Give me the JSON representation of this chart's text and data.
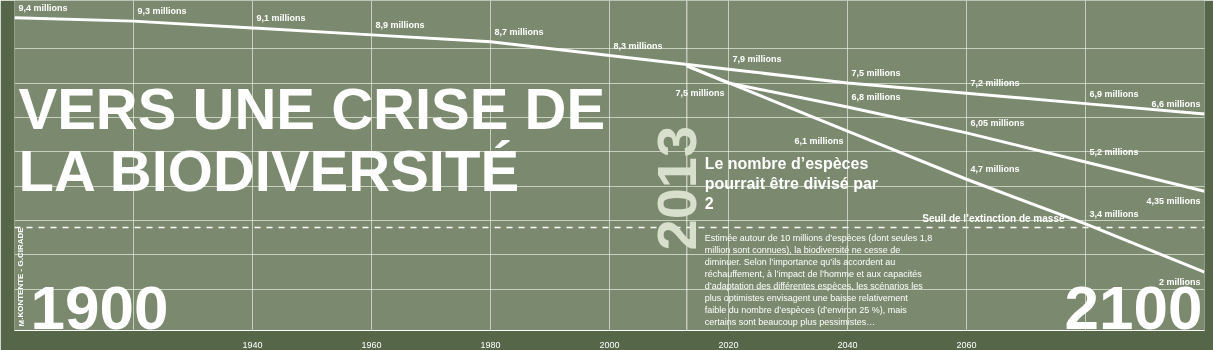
{
  "chart_data": {
    "type": "line",
    "title": "VERS UNE CRISE DE LA BIODIVERSITÉ",
    "subtitle": "Le nombre d’espèces pourrait être divisé par 2",
    "xlim": [
      1900,
      2100
    ],
    "ylim": [
      0.3,
      9.9
    ],
    "xticks": [
      {
        "value": 1920,
        "label": null
      },
      1940,
      1960,
      1980,
      {
        "value": 2000,
        "label": "2000"
      },
      2020,
      2040,
      2060,
      {
        "value": 2080,
        "label": null
      }
    ],
    "yticks": [
      {
        "value": 1.5,
        "label": null
      },
      {
        "value": 2.5,
        "label": null
      },
      {
        "value": 3.5,
        "label": null
      },
      {
        "value": 4.5,
        "label": null
      },
      {
        "value": 5.5,
        "label": null
      },
      {
        "value": 6.5,
        "label": null
      },
      {
        "value": 7.5,
        "label": null
      },
      {
        "value": 8.5,
        "label": null
      }
    ],
    "tick_labels": "x",
    "grid": true,
    "marker": "none",
    "line_style": "solid",
    "series": [
      {
        "color": "#ffffff",
        "x": [
          1900,
          1920,
          1940,
          1960,
          1980,
          2000,
          2020,
          2040,
          2060,
          2080,
          2100
        ],
        "values": [
          9.4,
          9.3,
          9.1,
          8.9,
          8.7,
          8.3,
          7.9,
          7.5,
          7.2,
          6.9,
          6.6
        ],
        "value_labels": [
          "9,4 millions",
          "9,3 millions",
          "9,1 millions",
          "8,9 millions",
          "8,7 millions",
          "8,3 millions",
          "7,9 millions",
          "7,5 millions",
          "7,2 millions",
          "6,9 millions",
          "6,6 millions"
        ]
      },
      {
        "color": "#ffffff",
        "x": [
          2013,
          2020,
          2040,
          2060,
          2080,
          2100
        ],
        "values": [
          8.0,
          7.5,
          6.8,
          6.05,
          5.2,
          4.35
        ],
        "value_labels": [
          null,
          "7,5 millions",
          "6,8 millions",
          "6,05 millions",
          "5,2 millions",
          "4,35 millions"
        ]
      },
      {
        "color": "#ffffff",
        "x": [
          2013,
          2040,
          2060,
          2080,
          2100
        ],
        "values": [
          8.0,
          6.1,
          4.7,
          3.4,
          2
        ],
        "value_labels": [
          null,
          "6,1 millions",
          "4,7 millions",
          "3,4 millions",
          "2 millions"
        ]
      }
    ],
    "ref_lines": [
      {
        "axis": "y",
        "value": 3.3,
        "label": "Seuil de l’extinction de masse",
        "color": "#ffffff",
        "line_style": "dashed"
      },
      {
        "axis": "x",
        "value": 2013,
        "label": "2013",
        "color": "#ffffff",
        "line_style": "solid"
      }
    ],
    "annotations": [
      "1900",
      "2100",
      "M.KONTENTE - G.CIRADE",
      "Estimée autour de 10 millions d’espèces (dont seules 1,8 million sont connues), la biodiversité ne cesse de diminuer. Selon l’importance qu’ils accordent au réchauffement, à l’impact de l’homme et aux capacités d’adaptation des différentes espèces, les scénarios les plus optimistes envisagent une baisse relativement faible du nombre d’espèces (d’environ 25 %), mais certains sont beaucoup plus pessimistes…"
    ]
  }
}
